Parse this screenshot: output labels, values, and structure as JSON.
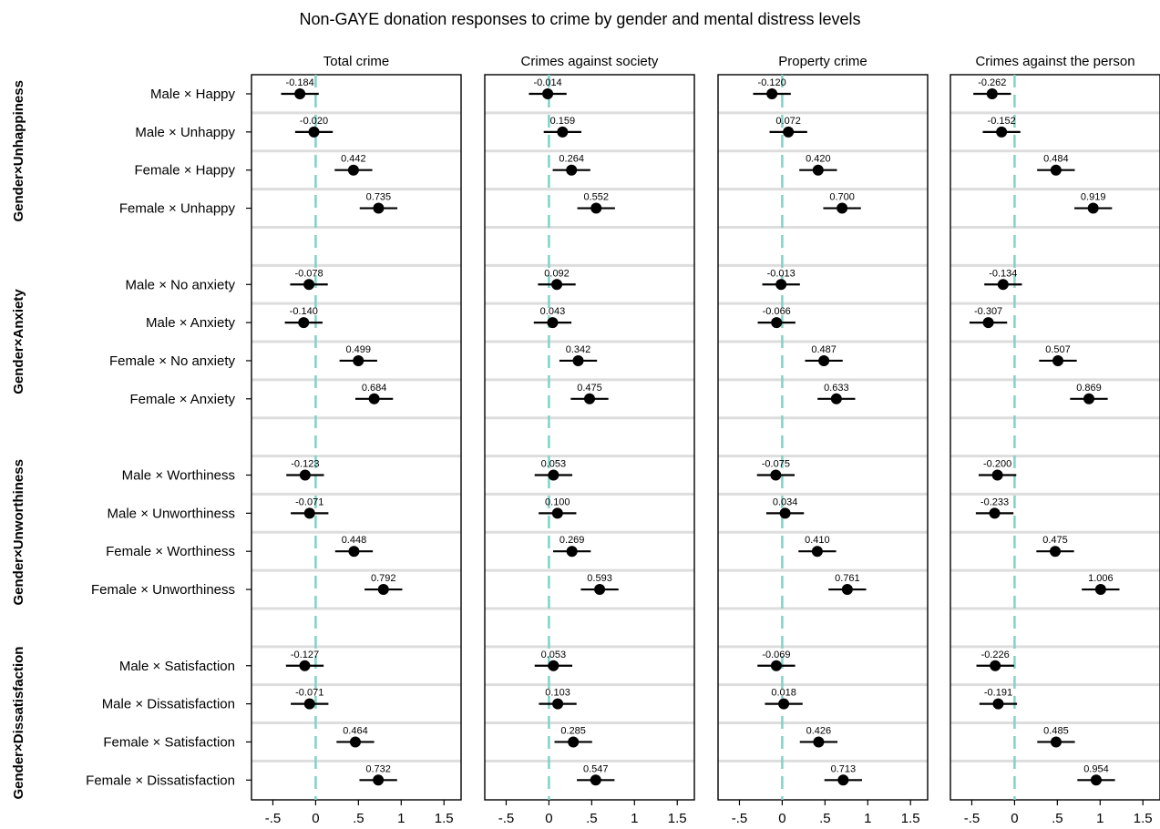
{
  "chart_data": {
    "type": "scatter",
    "title": "Non-GAYE donation responses to crime by gender and mental distress levels",
    "panels": [
      "Total crime",
      "Crimes against society",
      "Property crime",
      "Crimes against the person"
    ],
    "xlim": [
      -0.75,
      1.7
    ],
    "xticks": [
      -0.5,
      0,
      0.5,
      1,
      1.5
    ],
    "xtick_labels": [
      "-.5",
      "0",
      ".5",
      "1",
      "1.5"
    ],
    "reference_line_x": 0,
    "colors": {
      "reference_line": "#7fd3c6",
      "marker": "#000000",
      "separator": "#dddddd"
    },
    "groups": [
      {
        "name": "Gender×Unhappiness",
        "rows": [
          {
            "label": "Male × Happy",
            "values": [
              -0.184,
              -0.014,
              -0.12,
              -0.262
            ]
          },
          {
            "label": "Male × Unhappy",
            "values": [
              -0.02,
              0.159,
              0.072,
              -0.152
            ]
          },
          {
            "label": "Female × Happy",
            "values": [
              0.442,
              0.264,
              0.42,
              0.484
            ]
          },
          {
            "label": "Female × Unhappy",
            "values": [
              0.735,
              0.552,
              0.7,
              0.919
            ]
          }
        ]
      },
      {
        "name": "Gender×Anxiety",
        "rows": [
          {
            "label": "Male × No anxiety",
            "values": [
              -0.078,
              0.092,
              -0.013,
              -0.134
            ]
          },
          {
            "label": "Male × Anxiety",
            "values": [
              -0.14,
              0.043,
              -0.066,
              -0.307
            ]
          },
          {
            "label": "Female × No anxiety",
            "values": [
              0.499,
              0.342,
              0.487,
              0.507
            ]
          },
          {
            "label": "Female × Anxiety",
            "values": [
              0.684,
              0.475,
              0.633,
              0.869
            ]
          }
        ]
      },
      {
        "name": "Gender×Unworthiness",
        "rows": [
          {
            "label": "Male × Worthiness",
            "values": [
              -0.123,
              0.053,
              -0.075,
              -0.2
            ]
          },
          {
            "label": "Male × Unworthiness",
            "values": [
              -0.071,
              0.1,
              0.034,
              -0.233
            ]
          },
          {
            "label": "Female × Worthiness",
            "values": [
              0.448,
              0.269,
              0.41,
              0.475
            ]
          },
          {
            "label": "Female × Unworthiness",
            "values": [
              0.792,
              0.593,
              0.761,
              1.006
            ]
          }
        ]
      },
      {
        "name": "Gender×Dissatisfaction",
        "rows": [
          {
            "label": "Male × Satisfaction",
            "values": [
              -0.127,
              0.053,
              -0.069,
              -0.226
            ]
          },
          {
            "label": "Male × Dissatisfaction",
            "values": [
              -0.071,
              0.103,
              0.018,
              -0.191
            ]
          },
          {
            "label": "Female × Satisfaction",
            "values": [
              0.464,
              0.285,
              0.426,
              0.485
            ]
          },
          {
            "label": "Female × Dissatisfaction",
            "values": [
              0.732,
              0.547,
              0.713,
              0.954
            ]
          }
        ]
      }
    ]
  }
}
